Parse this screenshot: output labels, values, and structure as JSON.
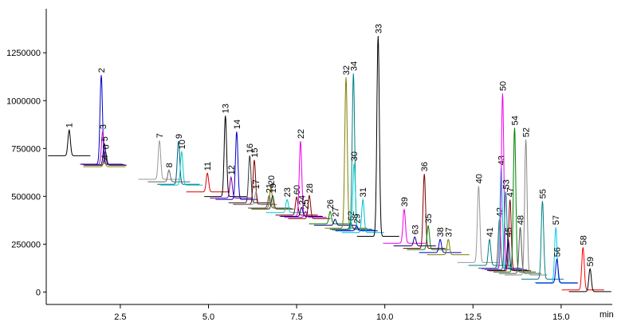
{
  "chart_data": {
    "type": "chromatogram",
    "x_label": "min",
    "xlim": [
      0.4,
      16.45
    ],
    "ylim": [
      -65000,
      1480000
    ],
    "xticks": [
      2.5,
      {
        "value": 5,
        "label": "5.0"
      },
      7.5,
      {
        "value": 10,
        "label": "10.0"
      },
      12.5,
      {
        "value": 15,
        "label": "15.0"
      }
    ],
    "yticks": [
      0,
      250000,
      500000,
      750000,
      1000000,
      1250000
    ],
    "peaks": [
      {
        "name": "1",
        "x": 1.05,
        "height": 846000,
        "baseline": 712000,
        "color": "#000000"
      },
      {
        "name": "2",
        "x": 1.96,
        "height": 1133000,
        "baseline": 668000,
        "color": "#0000cc"
      },
      {
        "name": "3",
        "x": 2.0,
        "height": 838000,
        "baseline": 666000,
        "color": "#cc00cc"
      },
      {
        "name": "5",
        "x": 2.05,
        "height": 775000,
        "baseline": 664000,
        "color": "#000080"
      },
      {
        "name": "6",
        "x": 2.08,
        "height": 733000,
        "baseline": 662000,
        "color": "#333333"
      },
      {
        "name": "4",
        "x": 2.05,
        "height": 679000,
        "baseline": 655000,
        "color": "#808000"
      },
      {
        "name": "7",
        "x": 3.61,
        "height": 792000,
        "baseline": 589000,
        "color": "#999999"
      },
      {
        "name": "8",
        "x": 3.88,
        "height": 637000,
        "baseline": 576000,
        "color": "#666666"
      },
      {
        "name": "9",
        "x": 4.15,
        "height": 788000,
        "baseline": 563000,
        "color": "#005f80"
      },
      {
        "name": "10",
        "x": 4.24,
        "height": 733000,
        "baseline": 559000,
        "color": "#00cccc"
      },
      {
        "name": "11",
        "x": 4.97,
        "height": 621000,
        "baseline": 523000,
        "color": "#dd0000"
      },
      {
        "name": "13",
        "x": 5.48,
        "height": 921000,
        "baseline": 499000,
        "color": "#000000"
      },
      {
        "name": "12",
        "x": 5.64,
        "height": 600000,
        "baseline": 491000,
        "color": "#8000a0"
      },
      {
        "name": "14",
        "x": 5.8,
        "height": 838000,
        "baseline": 484000,
        "color": "#0000cc"
      },
      {
        "name": "16",
        "x": 6.17,
        "height": 713000,
        "baseline": 466000,
        "color": "#333333"
      },
      {
        "name": "15",
        "x": 6.3,
        "height": 690000,
        "baseline": 459000,
        "color": "#800000"
      },
      {
        "name": "17",
        "x": 6.35,
        "height": 525000,
        "baseline": 457000,
        "color": "#999999"
      },
      {
        "name": "21",
        "x": 6.72,
        "height": 504000,
        "baseline": 439000,
        "color": "#555555"
      },
      {
        "name": "20",
        "x": 6.77,
        "height": 546000,
        "baseline": 437000,
        "color": "#808000"
      },
      {
        "name": "19",
        "x": 6.82,
        "height": 504000,
        "baseline": 434000,
        "color": "#333333"
      },
      {
        "name": "23",
        "x": 7.23,
        "height": 483000,
        "baseline": 415000,
        "color": "#00cccc"
      },
      {
        "name": "60",
        "x": 7.5,
        "height": 496000,
        "baseline": 402000,
        "color": "#800000"
      },
      {
        "name": "22",
        "x": 7.61,
        "height": 788000,
        "baseline": 396000,
        "color": "#ee00ee"
      },
      {
        "name": "24",
        "x": 7.64,
        "height": 442000,
        "baseline": 395000,
        "color": "#000080"
      },
      {
        "name": "25",
        "x": 7.75,
        "height": 420000,
        "baseline": 390000,
        "color": "#cc00cc"
      },
      {
        "name": "28",
        "x": 7.86,
        "height": 504000,
        "baseline": 384000,
        "color": "#800000"
      },
      {
        "name": "26",
        "x": 8.45,
        "height": 421000,
        "baseline": 356000,
        "color": "#008000"
      },
      {
        "name": "27",
        "x": 8.59,
        "height": 380000,
        "baseline": 349000,
        "color": "#000080"
      },
      {
        "name": "32",
        "x": 8.9,
        "height": 1121000,
        "baseline": 334000,
        "color": "#808000"
      },
      {
        "name": "62",
        "x": 9.04,
        "height": 360000,
        "baseline": 328000,
        "color": "#333333"
      },
      {
        "name": "34",
        "x": 9.11,
        "height": 1142000,
        "baseline": 324000,
        "color": "#008080"
      },
      {
        "name": "30",
        "x": 9.13,
        "height": 671000,
        "baseline": 323000,
        "color": "#00cccc"
      },
      {
        "name": "29",
        "x": 9.2,
        "height": 345000,
        "baseline": 320000,
        "color": "#0000cc"
      },
      {
        "name": "31",
        "x": 9.38,
        "height": 483000,
        "baseline": 311000,
        "color": "#00bbdd"
      },
      {
        "name": "33",
        "x": 9.81,
        "height": 1338000,
        "baseline": 291000,
        "color": "#000000"
      },
      {
        "name": "39",
        "x": 10.55,
        "height": 433000,
        "baseline": 255000,
        "color": "#ee00ee"
      },
      {
        "name": "63",
        "x": 10.85,
        "height": 288000,
        "baseline": 241000,
        "color": "#000080"
      },
      {
        "name": "36",
        "x": 11.12,
        "height": 617000,
        "baseline": 228000,
        "color": "#800000"
      },
      {
        "name": "35",
        "x": 11.23,
        "height": 346000,
        "baseline": 222000,
        "color": "#008000"
      },
      {
        "name": "38",
        "x": 11.57,
        "height": 275000,
        "baseline": 206000,
        "color": "#0000cc"
      },
      {
        "name": "37",
        "x": 11.8,
        "height": 275000,
        "baseline": 195000,
        "color": "#808000"
      },
      {
        "name": "40",
        "x": 12.66,
        "height": 554000,
        "baseline": 154000,
        "color": "#999999"
      },
      {
        "name": "41",
        "x": 12.97,
        "height": 275000,
        "baseline": 139000,
        "color": "#008080"
      },
      {
        "name": "42",
        "x": 13.25,
        "height": 379000,
        "baseline": 125000,
        "color": "#555555"
      },
      {
        "name": "43",
        "x": 13.3,
        "height": 650000,
        "baseline": 123000,
        "color": "#00cccc"
      },
      {
        "name": "50",
        "x": 13.34,
        "height": 1038000,
        "baseline": 121000,
        "color": "#ee00ee"
      },
      {
        "name": "53",
        "x": 13.43,
        "height": 525000,
        "baseline": 117000,
        "color": "#008080"
      },
      {
        "name": "45",
        "x": 13.5,
        "height": 275000,
        "baseline": 113000,
        "color": "#000080"
      },
      {
        "name": "47",
        "x": 13.55,
        "height": 483000,
        "baseline": 111000,
        "color": "#800000"
      },
      {
        "name": "54",
        "x": 13.68,
        "height": 858000,
        "baseline": 105000,
        "color": "#008000"
      },
      {
        "name": "48",
        "x": 13.84,
        "height": 338000,
        "baseline": 97000,
        "color": "#555555"
      },
      {
        "name": "52",
        "x": 14.0,
        "height": 796000,
        "baseline": 89000,
        "color": "#888888"
      },
      {
        "name": "55",
        "x": 14.47,
        "height": 475000,
        "baseline": 67000,
        "color": "#008080"
      },
      {
        "name": "57",
        "x": 14.85,
        "height": 338000,
        "baseline": 49000,
        "color": "#00ccee"
      },
      {
        "name": "56",
        "x": 14.88,
        "height": 171000,
        "baseline": 47000,
        "color": "#0000cc"
      },
      {
        "name": "58",
        "x": 15.62,
        "height": 233000,
        "baseline": 11000,
        "color": "#ff0000"
      },
      {
        "name": "59",
        "x": 15.82,
        "height": 121000,
        "baseline": 2000,
        "color": "#000000"
      }
    ]
  }
}
